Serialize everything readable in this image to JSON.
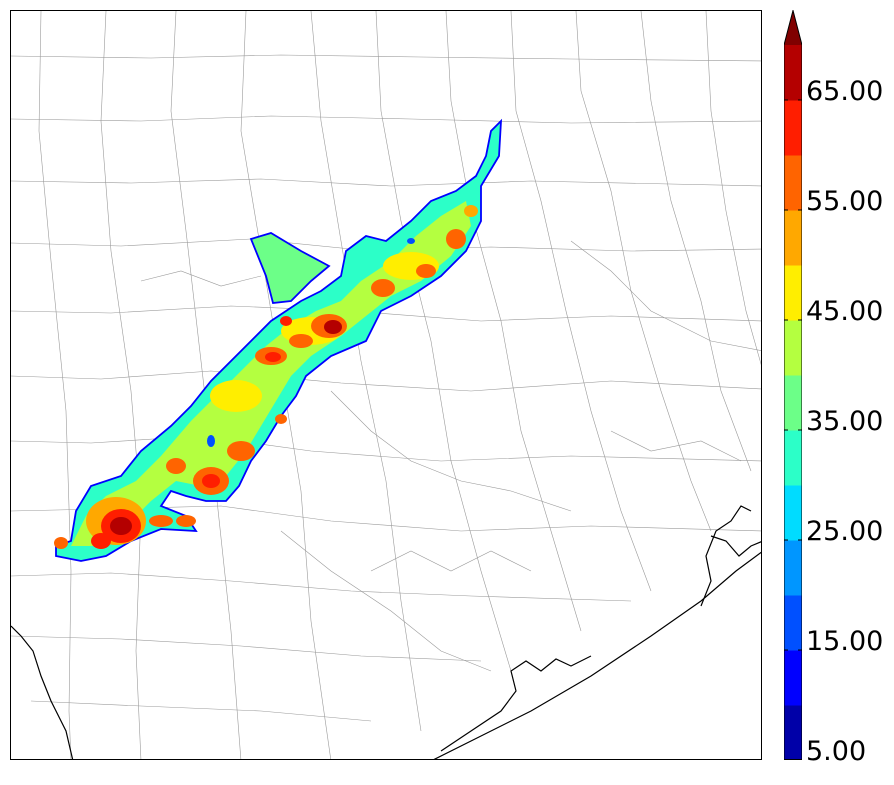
{
  "chart_data": {
    "type": "heatmap",
    "colorbar": {
      "levels": [
        5,
        10,
        15,
        20,
        25,
        30,
        35,
        40,
        45,
        50,
        55,
        60,
        65,
        70
      ],
      "tick_values": [
        5,
        15,
        25,
        35,
        45,
        55,
        65
      ],
      "tick_labels": [
        "5.00",
        "15.00",
        "25.00",
        "35.00",
        "45.00",
        "55.00",
        "65.00"
      ],
      "extend": "max",
      "colors": [
        "#0000a8",
        "#0000ff",
        "#0050ff",
        "#0096ff",
        "#00dcff",
        "#2cffc8",
        "#6cff88",
        "#b4ff40",
        "#ffee00",
        "#ffa800",
        "#ff6400",
        "#ff1e00",
        "#b40000"
      ],
      "over_color": "#800000"
    }
  }
}
